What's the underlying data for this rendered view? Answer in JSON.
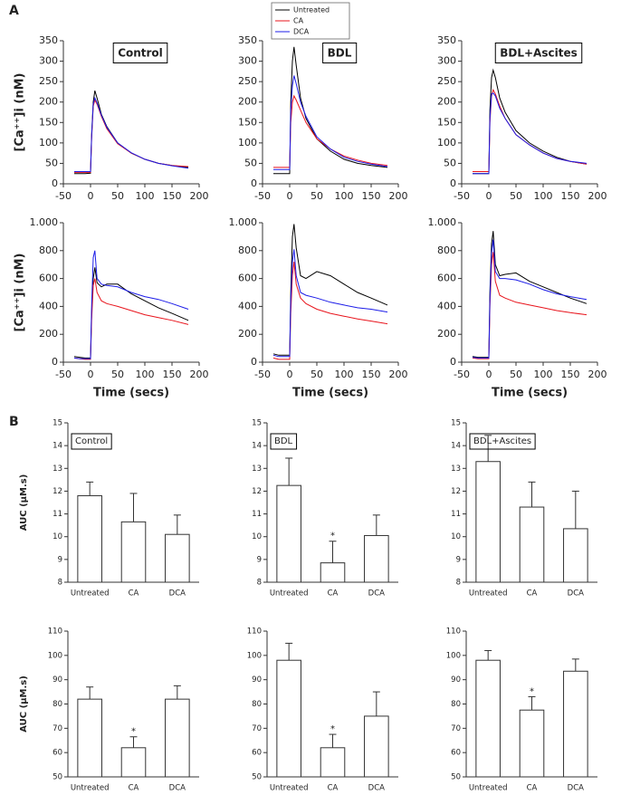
{
  "panel_labels": [
    "A",
    "B"
  ],
  "chart_data": [
    {
      "type": "line",
      "title": "Control",
      "ylabel": "[Ca⁺⁺]i (nM)",
      "x": [
        -30,
        -20,
        -10,
        0,
        2,
        5,
        8,
        12,
        20,
        30,
        50,
        75,
        100,
        125,
        150,
        180
      ],
      "series": [
        {
          "name": "Untreated",
          "color": "#000000",
          "values": [
            25,
            25,
            25,
            26,
            120,
            200,
            228,
            210,
            170,
            140,
            100,
            75,
            60,
            50,
            45,
            40
          ]
        },
        {
          "name": "CA",
          "color": "#e8141c",
          "values": [
            28,
            28,
            28,
            28,
            110,
            190,
            205,
            195,
            165,
            135,
            98,
            75,
            60,
            50,
            45,
            42
          ]
        },
        {
          "name": "DCA",
          "color": "#1c1ce8",
          "values": [
            30,
            30,
            30,
            30,
            115,
            195,
            210,
            198,
            168,
            138,
            100,
            76,
            60,
            50,
            44,
            38
          ]
        }
      ],
      "xlim": [
        -50,
        200
      ],
      "xticks": [
        -50,
        0,
        50,
        100,
        150,
        200
      ],
      "ylim": [
        0,
        350
      ],
      "yticks": [
        0,
        50,
        100,
        150,
        200,
        250,
        300,
        350
      ]
    },
    {
      "type": "line",
      "title": "BDL",
      "x": [
        -30,
        -20,
        -10,
        0,
        2,
        5,
        8,
        12,
        20,
        30,
        50,
        75,
        100,
        125,
        150,
        180
      ],
      "series": [
        {
          "color": "#000000",
          "values": [
            25,
            25,
            25,
            25,
            200,
            300,
            335,
            290,
            210,
            160,
            110,
            80,
            60,
            50,
            45,
            40
          ]
        },
        {
          "color": "#e8141c",
          "values": [
            40,
            40,
            40,
            40,
            150,
            200,
            215,
            205,
            180,
            150,
            110,
            85,
            68,
            58,
            50,
            45
          ]
        },
        {
          "color": "#1c1ce8",
          "values": [
            35,
            35,
            35,
            35,
            180,
            240,
            265,
            245,
            200,
            165,
            115,
            85,
            65,
            55,
            48,
            42
          ]
        }
      ],
      "xlim": [
        -50,
        200
      ],
      "xticks": [
        -50,
        0,
        50,
        100,
        150,
        200
      ],
      "ylim": [
        0,
        350
      ],
      "yticks": [
        0,
        50,
        100,
        150,
        200,
        250,
        300,
        350
      ]
    },
    {
      "type": "line",
      "title": "BDL+Ascites",
      "x": [
        -30,
        -20,
        -10,
        0,
        2,
        5,
        8,
        12,
        20,
        30,
        50,
        75,
        100,
        125,
        150,
        180
      ],
      "series": [
        {
          "color": "#000000",
          "values": [
            25,
            25,
            25,
            25,
            180,
            260,
            278,
            260,
            210,
            175,
            130,
            100,
            80,
            65,
            55,
            48
          ]
        },
        {
          "color": "#e8141c",
          "values": [
            30,
            30,
            30,
            30,
            150,
            215,
            230,
            220,
            190,
            160,
            120,
            95,
            75,
            62,
            55,
            48
          ]
        },
        {
          "color": "#1c1ce8",
          "values": [
            25,
            25,
            25,
            25,
            160,
            220,
            222,
            215,
            185,
            160,
            120,
            95,
            75,
            62,
            55,
            50
          ]
        }
      ],
      "xlim": [
        -50,
        200
      ],
      "xticks": [
        -50,
        0,
        50,
        100,
        150,
        200
      ],
      "ylim": [
        0,
        350
      ],
      "yticks": [
        0,
        50,
        100,
        150,
        200,
        250,
        300,
        350
      ]
    },
    {
      "type": "line",
      "ylabel": "[Ca⁺⁺]i (nM)",
      "xlabel": "Time (secs)",
      "x": [
        -30,
        -20,
        -10,
        0,
        2,
        5,
        8,
        12,
        20,
        30,
        50,
        75,
        100,
        125,
        150,
        180
      ],
      "series": [
        {
          "color": "#000000",
          "values": [
            40,
            35,
            30,
            30,
            350,
            600,
            680,
            570,
            540,
            560,
            560,
            490,
            440,
            390,
            350,
            300
          ]
        },
        {
          "color": "#e8141c",
          "values": [
            30,
            25,
            20,
            20,
            300,
            550,
            600,
            500,
            440,
            420,
            400,
            370,
            340,
            320,
            300,
            270
          ]
        },
        {
          "color": "#1c1ce8",
          "values": [
            30,
            25,
            25,
            25,
            400,
            750,
            800,
            600,
            560,
            550,
            540,
            500,
            470,
            450,
            420,
            380
          ]
        }
      ],
      "xlim": [
        -50,
        200
      ],
      "xticks": [
        -50,
        0,
        50,
        100,
        150,
        200
      ],
      "ylim": [
        0,
        1000
      ],
      "yticks": [
        0,
        200,
        400,
        600,
        800,
        {
          "value": 1000,
          "label": "1.000"
        }
      ]
    },
    {
      "type": "line",
      "xlabel": "Time (secs)",
      "x": [
        -30,
        -20,
        -10,
        0,
        2,
        5,
        8,
        12,
        20,
        30,
        50,
        75,
        100,
        125,
        150,
        180
      ],
      "series": [
        {
          "color": "#000000",
          "values": [
            60,
            50,
            50,
            50,
            500,
            900,
            990,
            820,
            620,
            600,
            650,
            620,
            560,
            500,
            460,
            410
          ]
        },
        {
          "color": "#e8141c",
          "values": [
            30,
            20,
            20,
            20,
            350,
            620,
            720,
            560,
            460,
            420,
            380,
            350,
            330,
            310,
            295,
            275
          ]
        },
        {
          "color": "#1c1ce8",
          "values": [
            50,
            40,
            40,
            40,
            450,
            720,
            810,
            620,
            500,
            480,
            460,
            430,
            410,
            390,
            380,
            360
          ]
        }
      ],
      "xlim": [
        -50,
        200
      ],
      "xticks": [
        -50,
        0,
        50,
        100,
        150,
        200
      ],
      "ylim": [
        0,
        1000
      ],
      "yticks": [
        0,
        200,
        400,
        600,
        800,
        {
          "value": 1000,
          "label": "1.000"
        }
      ]
    },
    {
      "type": "line",
      "xlabel": "Time (secs)",
      "x": [
        -30,
        -20,
        -10,
        0,
        2,
        5,
        8,
        12,
        20,
        30,
        50,
        75,
        100,
        125,
        150,
        180
      ],
      "series": [
        {
          "color": "#000000",
          "values": [
            40,
            35,
            35,
            35,
            500,
            850,
            940,
            700,
            620,
            630,
            640,
            580,
            540,
            500,
            460,
            420
          ]
        },
        {
          "color": "#e8141c",
          "values": [
            30,
            25,
            25,
            25,
            400,
            700,
            790,
            580,
            480,
            460,
            430,
            410,
            390,
            370,
            355,
            340
          ]
        },
        {
          "color": "#1c1ce8",
          "values": [
            35,
            30,
            30,
            30,
            450,
            780,
            880,
            650,
            600,
            600,
            590,
            560,
            520,
            490,
            470,
            450
          ]
        }
      ],
      "xlim": [
        -50,
        200
      ],
      "xticks": [
        -50,
        0,
        50,
        100,
        150,
        200
      ],
      "ylim": [
        0,
        1000
      ],
      "yticks": [
        0,
        200,
        400,
        600,
        800,
        {
          "value": 1000,
          "label": "1.000"
        }
      ]
    },
    {
      "type": "bar",
      "title": "Control",
      "ylabel": "AUC (µM.s)",
      "categories": [
        "Untreated",
        "CA",
        "DCA"
      ],
      "values": [
        11.8,
        10.65,
        10.1
      ],
      "errors": [
        0.6,
        1.25,
        0.85
      ],
      "significance": [
        null,
        null,
        null
      ],
      "color": "#ffffff",
      "ylim": [
        8,
        15
      ],
      "yticks": [
        8,
        9,
        10,
        11,
        12,
        13,
        14,
        15
      ]
    },
    {
      "type": "bar",
      "title": "BDL",
      "categories": [
        "Untreated",
        "CA",
        "DCA"
      ],
      "values": [
        12.25,
        8.85,
        10.05
      ],
      "errors": [
        1.2,
        0.95,
        0.9
      ],
      "significance": [
        null,
        "*",
        null
      ],
      "color": "#ffffff",
      "ylim": [
        8,
        15
      ],
      "yticks": [
        8,
        9,
        10,
        11,
        12,
        13,
        14,
        15
      ]
    },
    {
      "type": "bar",
      "title": "BDL+Ascites",
      "categories": [
        "Untreated",
        "CA",
        "DCA"
      ],
      "values": [
        13.3,
        11.3,
        10.35
      ],
      "errors": [
        1.15,
        1.1,
        1.65
      ],
      "significance": [
        null,
        null,
        null
      ],
      "color": "#ffffff",
      "ylim": [
        8,
        15
      ],
      "yticks": [
        8,
        9,
        10,
        11,
        12,
        13,
        14,
        15
      ]
    },
    {
      "type": "bar",
      "ylabel": "AUC (µM.s)",
      "categories": [
        "Untreated",
        "CA",
        "DCA"
      ],
      "values": [
        82,
        62,
        82
      ],
      "errors": [
        5,
        4.5,
        5.5
      ],
      "significance": [
        null,
        "*",
        null
      ],
      "color": "#ffffff",
      "ylim": [
        50,
        110
      ],
      "yticks": [
        50,
        60,
        70,
        80,
        90,
        100,
        110
      ]
    },
    {
      "type": "bar",
      "categories": [
        "Untreated",
        "CA",
        "DCA"
      ],
      "values": [
        98,
        62,
        75
      ],
      "errors": [
        7,
        5.5,
        10
      ],
      "significance": [
        null,
        "*",
        null
      ],
      "color": "#ffffff",
      "ylim": [
        50,
        110
      ],
      "yticks": [
        50,
        60,
        70,
        80,
        90,
        100,
        110
      ]
    },
    {
      "type": "bar",
      "categories": [
        "Untreated",
        "CA",
        "DCA"
      ],
      "values": [
        98,
        77.5,
        93.5
      ],
      "errors": [
        4,
        5.5,
        5
      ],
      "significance": [
        null,
        "*",
        null
      ],
      "color": "#ffffff",
      "ylim": [
        50,
        110
      ],
      "yticks": [
        50,
        60,
        70,
        80,
        90,
        100,
        110
      ]
    }
  ]
}
